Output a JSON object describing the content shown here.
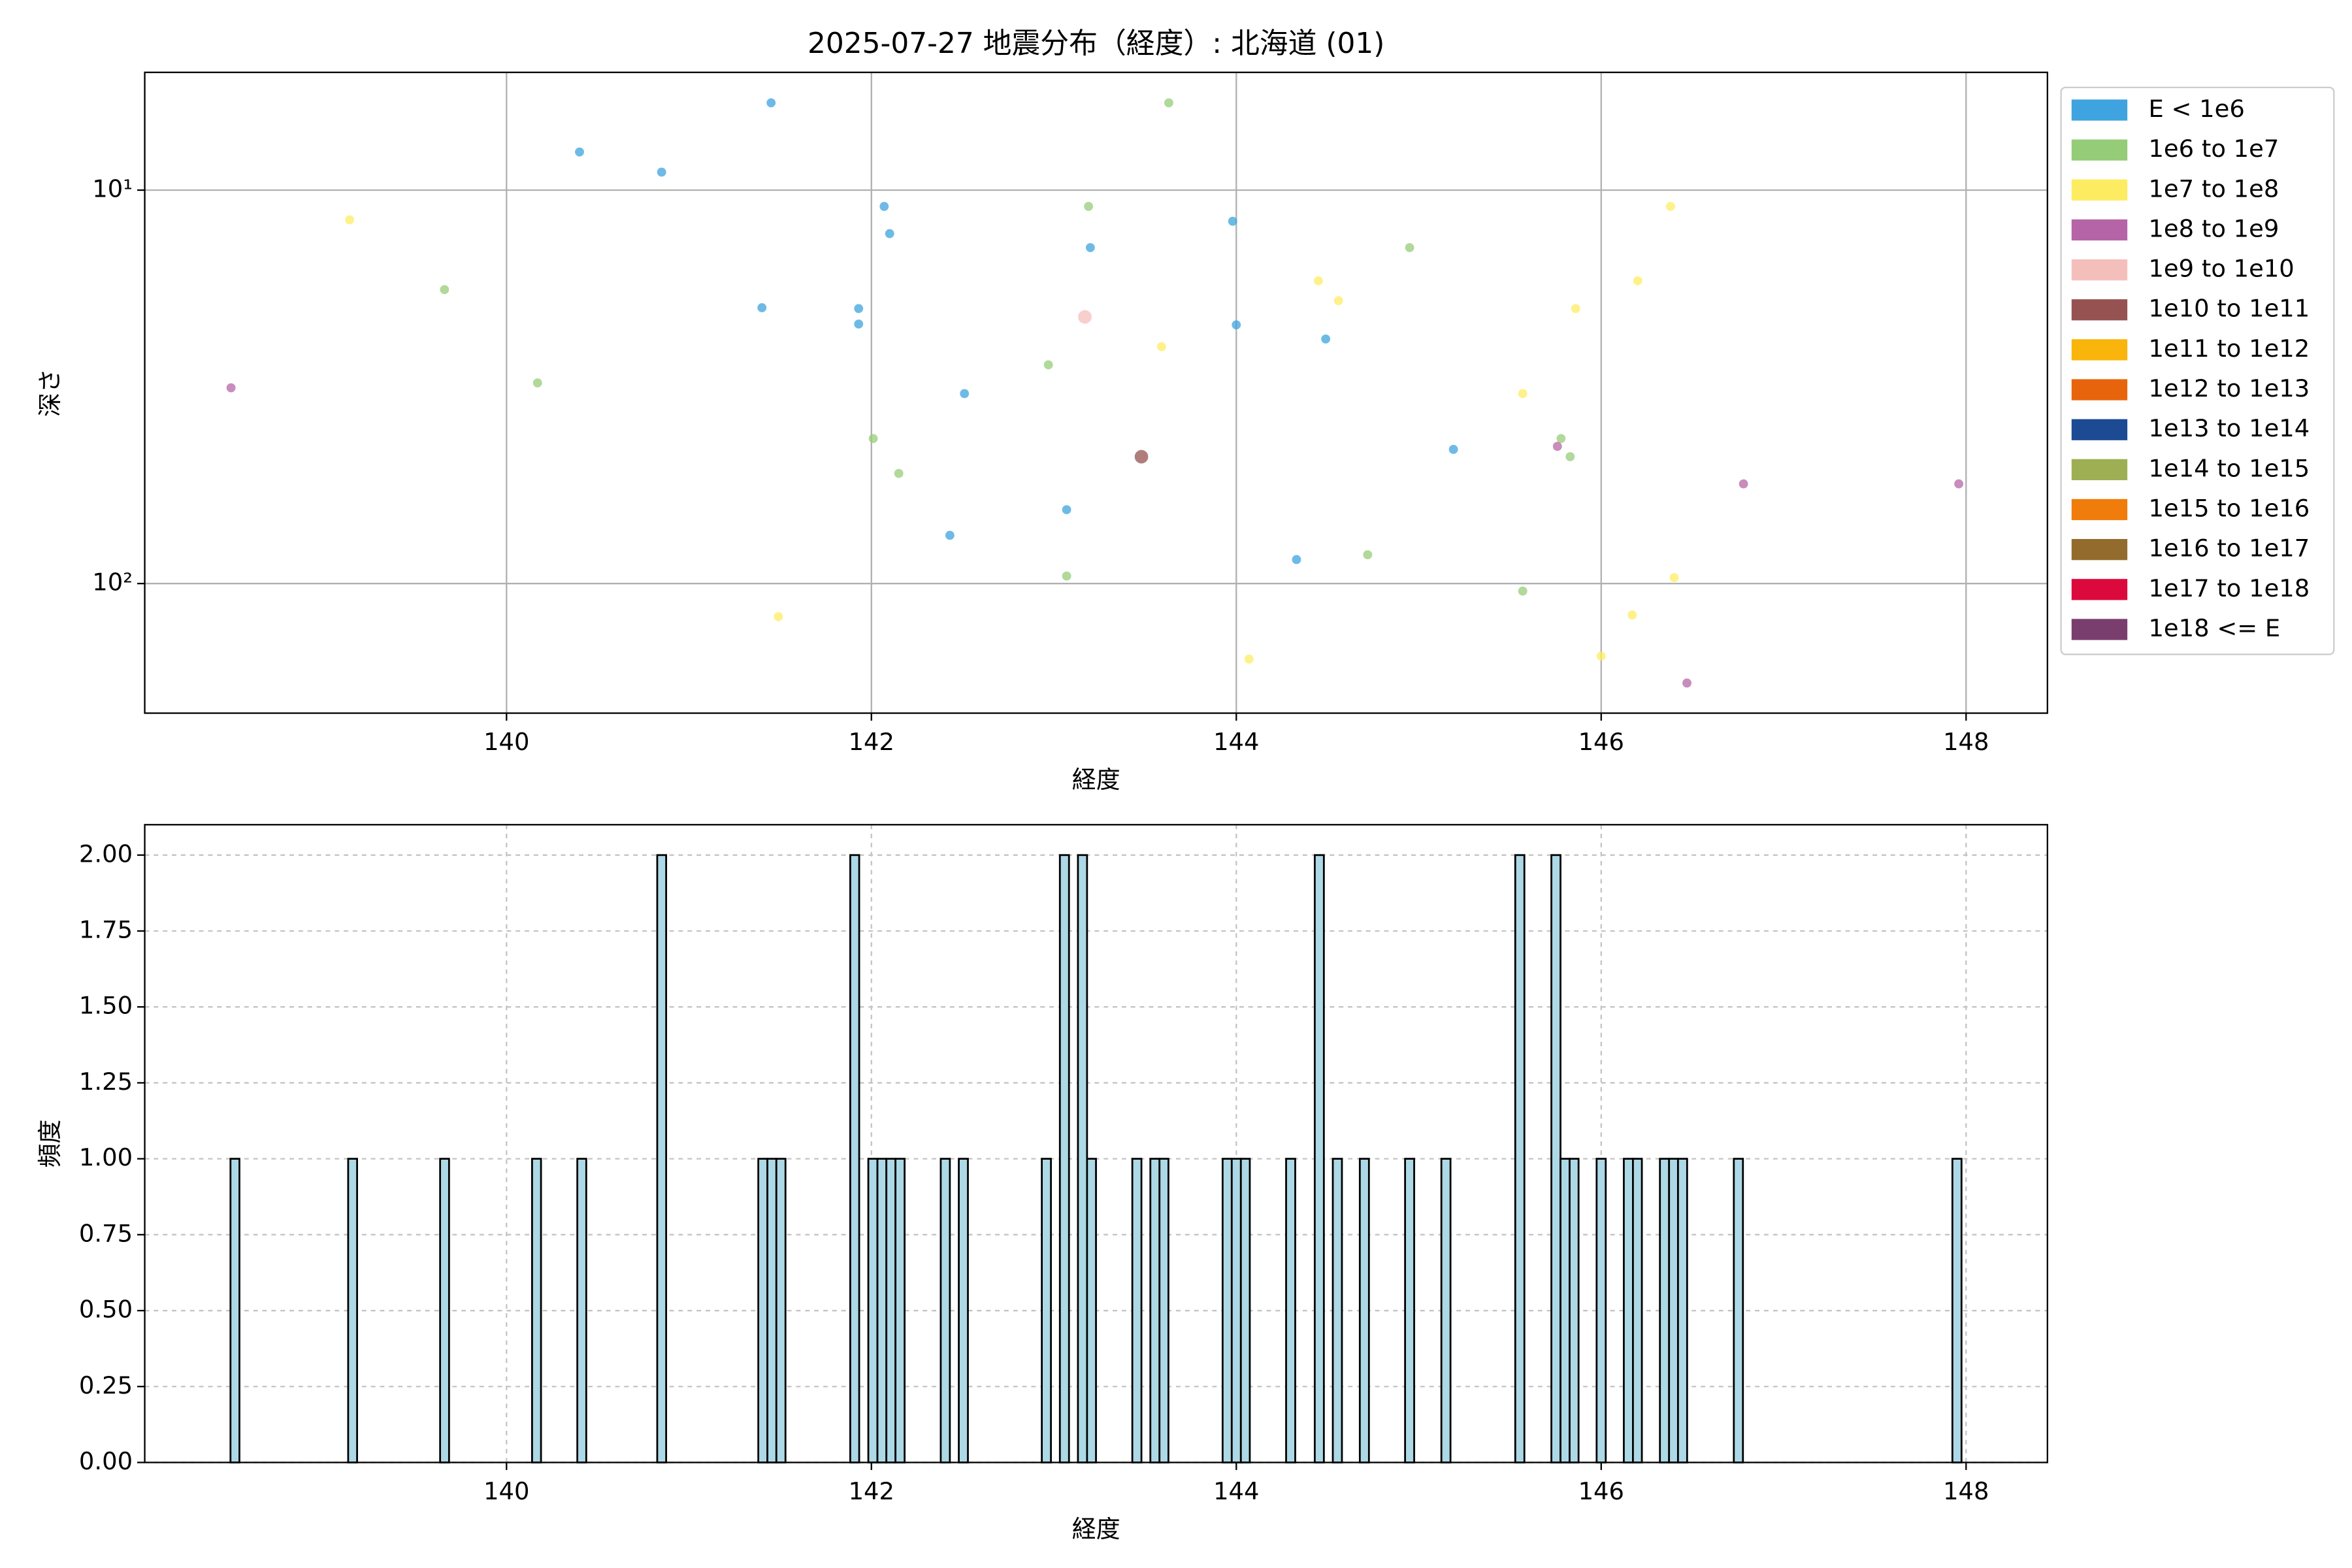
{
  "chart_data": [
    {
      "type": "scatter",
      "title": "2025-07-27 地震分布（経度）: 北海道 (01)",
      "x_label": "経度",
      "y_label": "深さ",
      "xlim": [
        138.017,
        148.446
      ],
      "xticks": [
        140,
        142,
        144,
        146,
        148
      ],
      "ylim": [
        213.5,
        5.02
      ],
      "y_scale": "log",
      "yticks": [
        {
          "value": 10,
          "label": "10¹"
        },
        {
          "value": 100,
          "label": "10²"
        }
      ],
      "grid": "solid",
      "legend": "outside-upper-right",
      "series": [
        {
          "name": "E < 1e6",
          "color": "#3ea3de",
          "x": [
            141.45,
            140.4,
            140.85,
            142.07,
            142.1,
            143.2,
            143.98,
            141.4,
            141.93,
            141.93,
            144.0,
            144.49,
            142.51,
            145.19,
            143.07,
            142.43,
            144.33
          ],
          "values": [
            6.0,
            8.0,
            9.0,
            11.0,
            12.9,
            14.0,
            12.0,
            19.9,
            20.0,
            21.9,
            22.0,
            23.9,
            32.9,
            45.6,
            64.9,
            75.4,
            86.9
          ]
        },
        {
          "name": "1e6 to 1e7",
          "color": "#95cc78",
          "x": [
            143.63,
            143.19,
            144.95,
            139.66,
            142.97,
            140.17,
            142.01,
            142.15,
            145.78,
            145.83,
            143.07,
            144.72,
            145.57
          ],
          "values": [
            6.0,
            11.0,
            14.0,
            17.9,
            27.8,
            30.9,
            42.8,
            52.5,
            42.8,
            47.6,
            95.7,
            84.5,
            104.5
          ]
        },
        {
          "name": "1e7 to 1e8",
          "color": "#fdec62",
          "x": [
            139.14,
            146.38,
            144.45,
            144.56,
            146.2,
            145.86,
            143.59,
            145.57,
            141.49,
            144.07,
            146.4,
            146.17,
            146.0
          ],
          "values": [
            11.9,
            11.0,
            17.0,
            19.1,
            17.0,
            20.0,
            25.0,
            32.9,
            121.4,
            155.6,
            96.6,
            120.2,
            152.9
          ]
        },
        {
          "name": "1e8 to 1e9",
          "color": "#b565a7",
          "x": [
            138.49,
            145.76,
            146.78,
            147.96,
            146.47
          ],
          "values": [
            31.8,
            44.8,
            55.8,
            55.8,
            179
          ]
        },
        {
          "name": "1e9 to 1e10",
          "color": "#f4bfbb",
          "x": [
            143.17
          ],
          "values": [
            21.0
          ]
        },
        {
          "name": "1e10 to 1e11",
          "color": "#955251",
          "x": [
            143.48
          ],
          "values": [
            47.6
          ]
        },
        {
          "name": "1e11 to 1e12",
          "color": "#f9b50b",
          "x": [],
          "values": []
        },
        {
          "name": "1e12 to 1e13",
          "color": "#e8640c",
          "x": [],
          "values": []
        },
        {
          "name": "1e13 to 1e14",
          "color": "#1c4a93",
          "x": [],
          "values": []
        },
        {
          "name": "1e14 to 1e15",
          "color": "#9daf52",
          "x": [],
          "values": []
        },
        {
          "name": "1e15 to 1e16",
          "color": "#f07c0b",
          "x": [],
          "values": []
        },
        {
          "name": "1e16 to 1e17",
          "color": "#936c2d",
          "x": [],
          "values": []
        },
        {
          "name": "1e17 to 1e18",
          "color": "#dc0a3c",
          "x": [],
          "values": []
        },
        {
          "name": "1e18 <= E",
          "color": "#7a3e6e",
          "x": [],
          "values": []
        }
      ]
    },
    {
      "type": "histogram",
      "x_label": "経度",
      "y_label": "頻度",
      "xlim": [
        138.017,
        148.446
      ],
      "xticks": [
        140,
        142,
        144,
        146,
        148
      ],
      "ylim": [
        0,
        2.1
      ],
      "yticks": [
        {
          "value": 0,
          "label": "0.00"
        },
        {
          "value": 0.25,
          "label": "0.25"
        },
        {
          "value": 0.5,
          "label": "0.50"
        },
        {
          "value": 0.75,
          "label": "0.75"
        },
        {
          "value": 1,
          "label": "1.00"
        },
        {
          "value": 1.25,
          "label": "1.25"
        },
        {
          "value": 1.5,
          "label": "1.50"
        },
        {
          "value": 1.75,
          "label": "1.75"
        },
        {
          "value": 2,
          "label": "2.00"
        }
      ],
      "grid": "dashed",
      "color": "#add8e6",
      "edgecolor": "#000000",
      "bins": [
        138.487,
        138.536,
        139.132,
        139.181,
        139.636,
        139.685,
        140.14,
        140.189,
        140.388,
        140.437,
        140.826,
        140.875,
        141.38,
        141.43,
        141.479,
        141.529,
        141.884,
        141.933,
        141.983,
        142.033,
        142.082,
        142.132,
        142.182,
        142.38,
        142.43,
        142.479,
        142.529,
        142.934,
        142.984,
        143.033,
        143.083,
        143.132,
        143.182,
        143.231,
        143.43,
        143.48,
        143.529,
        143.579,
        143.628,
        143.925,
        143.975,
        144.025,
        144.074,
        144.273,
        144.323,
        144.43,
        144.48,
        144.529,
        144.579,
        144.677,
        144.727,
        144.925,
        144.975,
        145.124,
        145.174,
        145.529,
        145.579,
        145.727,
        145.777,
        145.827,
        145.876,
        145.975,
        146.025,
        146.124,
        146.174,
        146.223,
        146.322,
        146.372,
        146.421,
        146.471,
        146.727,
        146.777,
        147.925,
        147.975
      ],
      "values": [
        1,
        0,
        1,
        0,
        1,
        0,
        1,
        0,
        1,
        0,
        2,
        0,
        1,
        1,
        1,
        0,
        2,
        0,
        1,
        1,
        1,
        1,
        0,
        1,
        0,
        1,
        0,
        1,
        0,
        2,
        0,
        2,
        1,
        0,
        1,
        0,
        1,
        1,
        0,
        1,
        1,
        1,
        0,
        1,
        0,
        2,
        0,
        1,
        0,
        1,
        0,
        1,
        0,
        1,
        0,
        2,
        0,
        2,
        1,
        1,
        0,
        1,
        0,
        1,
        1,
        0,
        1,
        1,
        1,
        0,
        1,
        0,
        1
      ]
    }
  ]
}
